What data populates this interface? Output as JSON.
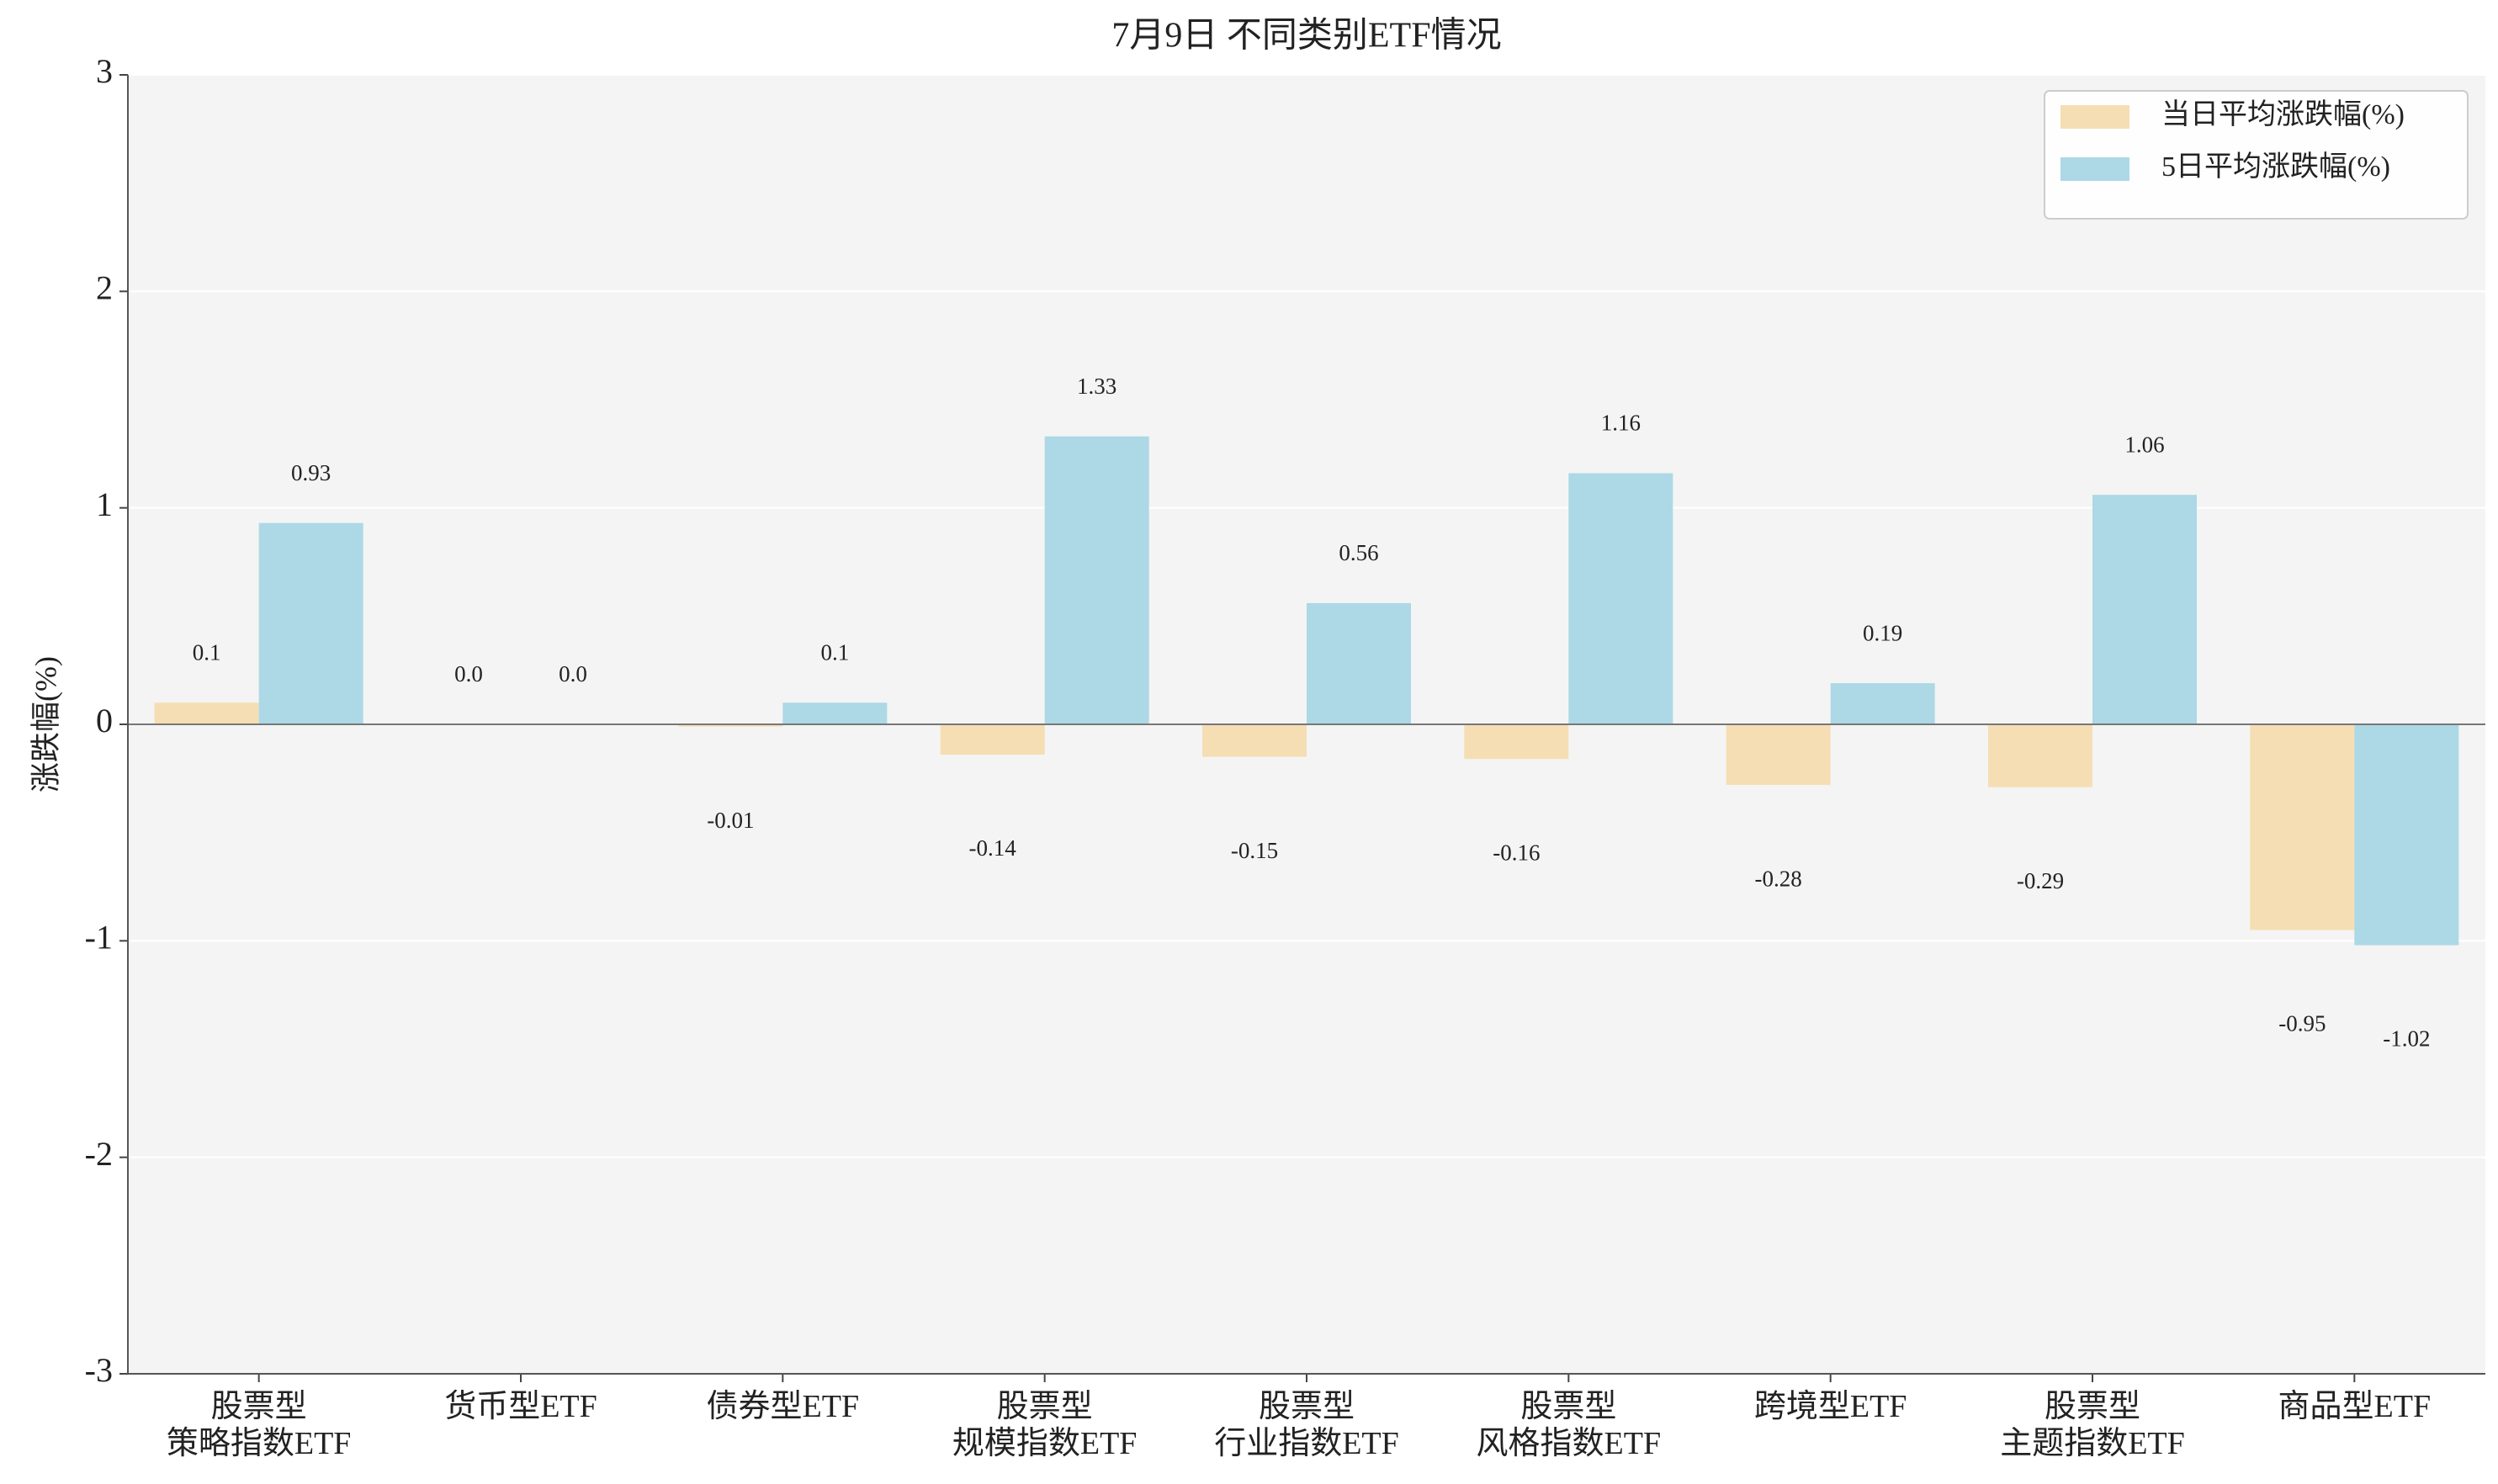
{
  "chart_data": {
    "type": "bar",
    "title": "7月9日 不同类别ETF情况",
    "y_label": "涨跌幅(%)",
    "categories": [
      "股票型\n策略指数ETF",
      "货币型ETF",
      "债券型ETF",
      "股票型\n规模指数ETF",
      "股票型\n行业指数ETF",
      "股票型\n风格指数ETF",
      "跨境型ETF",
      "股票型\n主题指数ETF",
      "商品型ETF"
    ],
    "series": [
      {
        "name": "当日平均涨跌幅(%)",
        "color": "#f5deb3",
        "values": [
          0.1,
          0.0,
          -0.01,
          -0.14,
          -0.15,
          -0.16,
          -0.28,
          -0.29,
          -0.95
        ],
        "value_labels": [
          "0.1",
          "0.0",
          "-0.01",
          "-0.14",
          "-0.15",
          "-0.16",
          "-0.28",
          "-0.29",
          "-0.95"
        ]
      },
      {
        "name": "5日平均涨跌幅(%)",
        "color": "#add8e6",
        "values": [
          0.93,
          0.0,
          0.1,
          1.33,
          0.56,
          1.16,
          0.19,
          1.06,
          -1.02
        ],
        "value_labels": [
          "0.93",
          "0.0",
          "0.1",
          "1.33",
          "0.56",
          "1.16",
          "0.19",
          "1.06",
          "-1.02"
        ]
      }
    ],
    "ylim": [
      -3,
      3
    ],
    "yticks": [
      -3,
      -2,
      -1,
      0,
      1,
      2,
      3
    ],
    "grid": true,
    "legend": "upper right"
  }
}
